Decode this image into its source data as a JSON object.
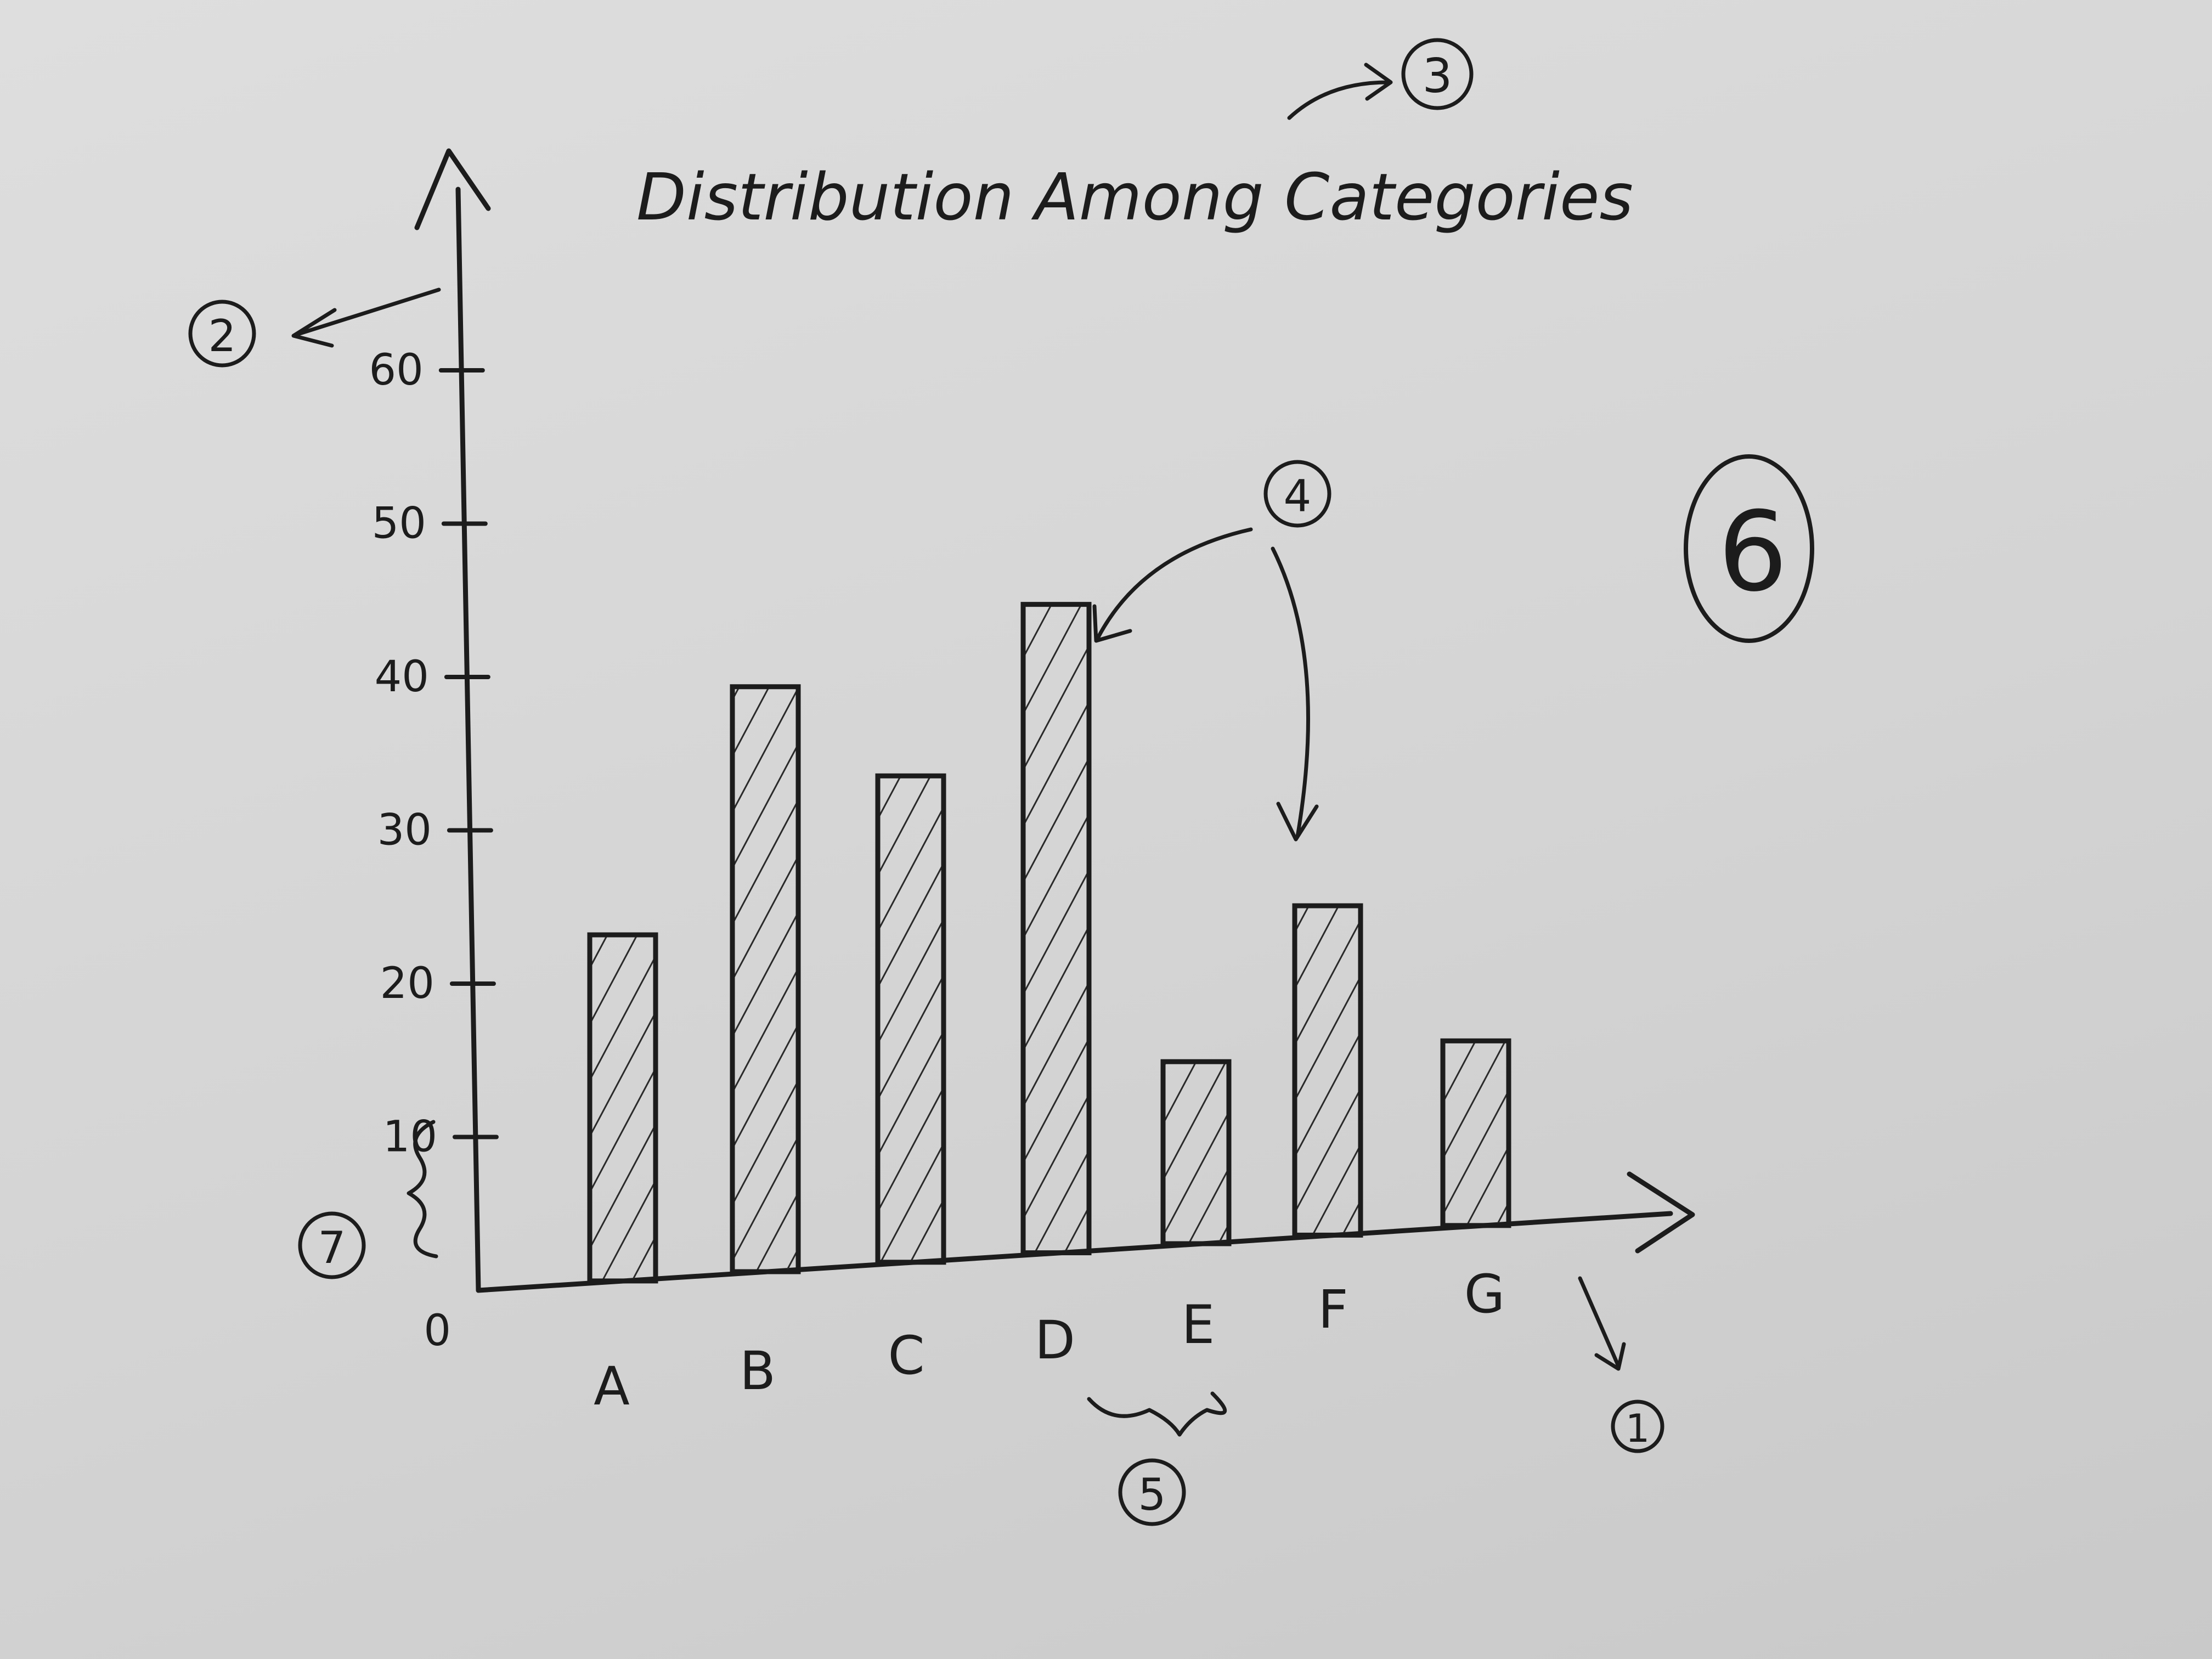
{
  "chart_data": {
    "type": "bar",
    "title": "Distribution Among Categories",
    "xlabel": "",
    "ylabel": "",
    "categories": [
      "A",
      "B",
      "C",
      "D",
      "E",
      "F",
      "G"
    ],
    "values": [
      23,
      39,
      33,
      44,
      14,
      24,
      15
    ],
    "ylim": [
      0,
      60
    ],
    "yticks": [
      "0",
      "10",
      "20",
      "30",
      "40",
      "50",
      "60"
    ],
    "grid": false,
    "legend": "none",
    "bar_fill": "hatched",
    "ink_color": "#1c1c1c"
  },
  "annotations": {
    "m1": "1",
    "m2": "2",
    "m3": "3",
    "m4": "4",
    "m5": "5",
    "m6": "6",
    "m7": "7"
  }
}
